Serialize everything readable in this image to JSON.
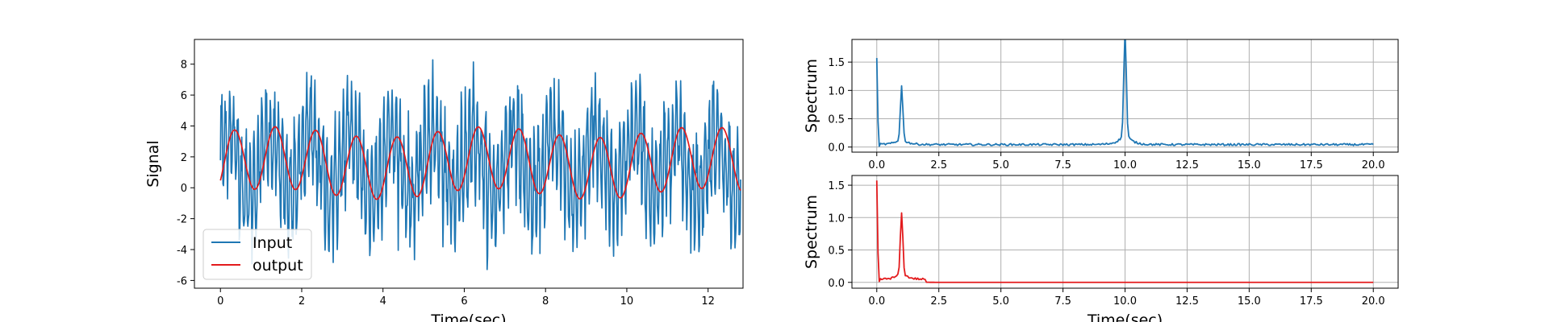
{
  "chart_data": [
    {
      "type": "line",
      "xlabel": "Time(sec)",
      "ylabel": "Signal",
      "xlim": [
        -0.64,
        12.86
      ],
      "ylim": [
        -6.5,
        9.6
      ],
      "xticks": [
        0,
        2,
        4,
        6,
        8,
        10,
        12
      ],
      "yticks": [
        -6,
        -4,
        -2,
        0,
        2,
        4,
        6,
        8
      ],
      "grid": false,
      "legend": {
        "placement": "lower-left",
        "entries": [
          "Input",
          "output"
        ]
      },
      "series": [
        {
          "name": "Input",
          "color": "#1f77b4",
          "x_range": [
            0,
            12.8
          ],
          "description_y": "noisy oscillation ~1.5 + 2*sin(2*pi*1*t) + 3*sin(2*pi*10*t) + noise, range approx -5.6 to 8.9"
        },
        {
          "name": "output",
          "color": "#e31a1c",
          "x_range": [
            0,
            12.8
          ],
          "description_y": "smooth sinusoid ~1.6 + 2*sin(2*pi*1*t), range approx -0.9 to 4.0"
        }
      ]
    },
    {
      "type": "line",
      "xlabel": "",
      "ylabel": "Spectrum",
      "xlim": [
        -1.0,
        21.0
      ],
      "ylim": [
        -0.09,
        1.9
      ],
      "xticks": [
        0.0,
        2.5,
        5.0,
        7.5,
        10.0,
        12.5,
        15.0,
        17.5,
        20.0
      ],
      "yticks": [
        0.0,
        0.5,
        1.0,
        1.5
      ],
      "grid": true,
      "series": [
        {
          "color": "#1f77b4",
          "peaks": [
            {
              "x": 0.0,
              "y": 1.57
            },
            {
              "x": 1.0,
              "y": 0.92
            },
            {
              "x": 10.0,
              "y": 1.81
            }
          ],
          "baseline": 0.04
        }
      ]
    },
    {
      "type": "line",
      "xlabel": "Time(sec)",
      "ylabel": "Spectrum",
      "xlim": [
        -1.0,
        21.0
      ],
      "ylim": [
        -0.09,
        1.65
      ],
      "xticks": [
        0.0,
        2.5,
        5.0,
        7.5,
        10.0,
        12.5,
        15.0,
        17.5,
        20.0
      ],
      "yticks": [
        0.0,
        0.5,
        1.0,
        1.5
      ],
      "grid": true,
      "series": [
        {
          "color": "#e31a1c",
          "peaks": [
            {
              "x": 0.0,
              "y": 1.57
            },
            {
              "x": 1.0,
              "y": 0.92
            }
          ],
          "baseline": 0.0,
          "noise_until": 2.0
        }
      ]
    }
  ]
}
